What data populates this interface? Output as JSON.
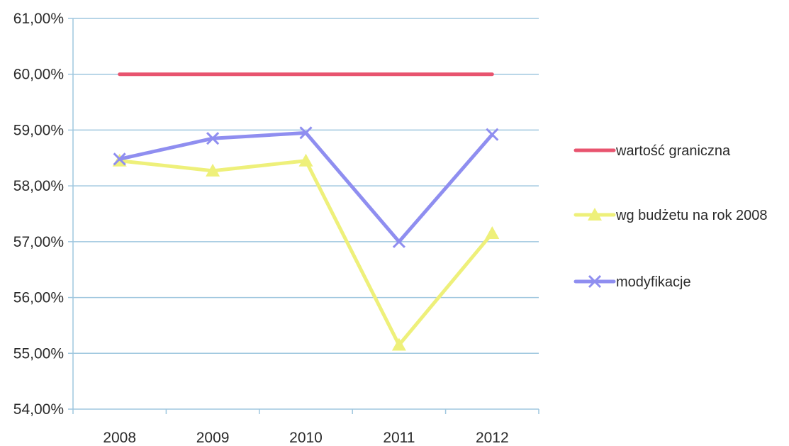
{
  "chart_data": {
    "type": "line",
    "categories": [
      "2008",
      "2009",
      "2010",
      "2011",
      "2012"
    ],
    "y_ticks": [
      "54,00%",
      "55,00%",
      "56,00%",
      "57,00%",
      "58,00%",
      "59,00%",
      "60,00%",
      "61,00%"
    ],
    "ylim": [
      54,
      61
    ],
    "grid": true,
    "legend_position": "right",
    "series": [
      {
        "name": "wartość graniczna",
        "values": [
          60.0,
          60.0,
          60.0,
          60.0,
          60.0
        ],
        "color": "#e8546f",
        "marker": "none"
      },
      {
        "name": "wg budżetu na rok 2008",
        "values": [
          58.45,
          58.27,
          58.45,
          55.15,
          57.15
        ],
        "color": "#eef07a",
        "marker": "triangle"
      },
      {
        "name": "modyfikacje",
        "values": [
          58.48,
          58.85,
          58.95,
          57.0,
          58.92
        ],
        "color": "#8f8ef0",
        "marker": "x"
      }
    ]
  }
}
